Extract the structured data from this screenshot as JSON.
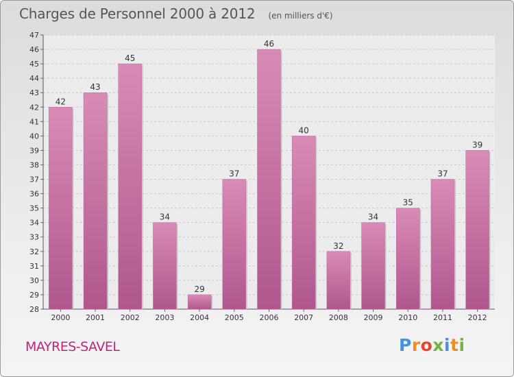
{
  "chart_data": {
    "type": "bar",
    "title": "Charges de Personnel 2000 à 2012",
    "subtitle": "(en milliers d'€)",
    "categories": [
      "2000",
      "2001",
      "2002",
      "2003",
      "2004",
      "2005",
      "2006",
      "2007",
      "2008",
      "2009",
      "2010",
      "2011",
      "2012"
    ],
    "values": [
      42,
      43,
      45,
      34,
      29,
      37,
      46,
      40,
      32,
      34,
      35,
      37,
      39
    ],
    "ylim": [
      28,
      47
    ],
    "ytick_step": 1,
    "grid": true,
    "xlabel": "",
    "ylabel": "",
    "bar_color": "#d98bb6",
    "bar_color_dark": "#b0578e"
  },
  "commune": "MAYRES-SAVEL",
  "logo": {
    "text": "Proxiti",
    "colors": [
      "#4a90d9",
      "#f28c1e",
      "#e8452c",
      "#6fb43f",
      "#4a90d9",
      "#f28c1e",
      "#6fb43f"
    ]
  }
}
